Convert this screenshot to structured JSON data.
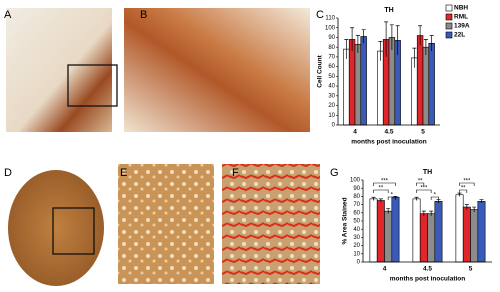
{
  "panel_labels": [
    "A",
    "B",
    "C",
    "D",
    "E",
    "F",
    "G"
  ],
  "chart_data": [
    {
      "type": "bar",
      "title": "TH",
      "y_label": "Cell Count",
      "x_label": "months post inoculation",
      "categories": [
        "4",
        "4.5",
        "5"
      ],
      "series": [
        {
          "name": "NBH",
          "color": "#ffffff",
          "values": [
            78,
            76,
            69
          ],
          "errors": [
            10,
            10,
            10
          ]
        },
        {
          "name": "RML",
          "color": "#e0262a",
          "values": [
            88,
            88,
            92
          ],
          "errors": [
            12,
            18,
            10
          ]
        },
        {
          "name": "139A",
          "color": "#8c8c8c",
          "values": [
            83,
            90,
            80
          ],
          "errors": [
            9,
            13,
            8
          ]
        },
        {
          "name": "22L",
          "color": "#3a5ab8",
          "values": [
            91,
            87,
            84
          ],
          "errors": [
            7,
            15,
            8
          ]
        }
      ],
      "ylim": [
        0,
        110
      ],
      "yticks": [
        0,
        10,
        20,
        30,
        40,
        50,
        60,
        70,
        80,
        90,
        100,
        110
      ],
      "legend": "top-right"
    },
    {
      "type": "bar",
      "title": "TH",
      "y_label": "% Area Stained",
      "x_label": "months post inoculation",
      "categories": [
        "4",
        "4.5",
        "5"
      ],
      "series": [
        {
          "name": "NBH",
          "color": "#ffffff",
          "values": [
            77,
            77,
            82
          ],
          "errors": [
            2,
            2,
            2
          ]
        },
        {
          "name": "RML",
          "color": "#e0262a",
          "values": [
            75,
            59,
            67
          ],
          "errors": [
            2,
            3,
            3
          ]
        },
        {
          "name": "139A",
          "color": "#8c8c8c",
          "values": [
            62,
            59,
            64
          ],
          "errors": [
            3,
            3,
            3
          ]
        },
        {
          "name": "22L",
          "color": "#3a5ab8",
          "values": [
            79,
            74,
            74
          ],
          "errors": [
            1,
            2,
            2
          ]
        }
      ],
      "ylim": [
        0,
        100
      ],
      "yticks": [
        0,
        10,
        20,
        30,
        40,
        50,
        60,
        70,
        80,
        90,
        100
      ],
      "annotations": [
        "***",
        "**",
        "*",
        "**",
        "***",
        "*",
        "***",
        "**"
      ]
    }
  ]
}
